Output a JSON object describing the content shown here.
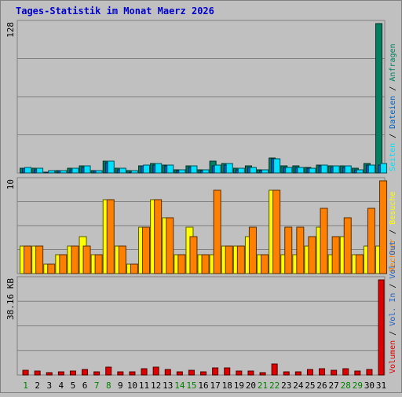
{
  "title": "Tages-Statistik im Monat Maerz 2026",
  "colors": {
    "title": "#0000cc",
    "anfragen": "#008060",
    "dateien": "#0060c0",
    "seiten": "#00e0ff",
    "besuche": "#ffff00",
    "rechner": "#ff8000",
    "vol_out": "#2060c0",
    "vol_in": "#2060c0",
    "volumen": "#e00000",
    "weekday_label": "#000000",
    "weekend_label": "#008000"
  },
  "chart_data": [
    {
      "type": "bar",
      "title": "Tages-Statistik im Monat Maerz 2026",
      "ymax_label": "128",
      "ylim": [
        0,
        128
      ],
      "categories": [
        "1",
        "2",
        "3",
        "4",
        "5",
        "6",
        "7",
        "8",
        "9",
        "10",
        "11",
        "12",
        "13",
        "14",
        "15",
        "16",
        "17",
        "18",
        "19",
        "20",
        "21",
        "22",
        "23",
        "24",
        "25",
        "26",
        "27",
        "28",
        "29",
        "30",
        "31"
      ],
      "legend": [
        "Anfragen",
        "Dateien",
        "Seiten"
      ],
      "series": [
        {
          "name": "Anfragen",
          "values": [
            4,
            4,
            1,
            2,
            4,
            6,
            2,
            10,
            4,
            2,
            6,
            8,
            7,
            3,
            6,
            3,
            10,
            8,
            4,
            6,
            3,
            13,
            6,
            6,
            5,
            7,
            6,
            6,
            4,
            8,
            128
          ]
        },
        {
          "name": "Dateien",
          "values": [
            4,
            3,
            1,
            2,
            3,
            5,
            2,
            9,
            3,
            1,
            6,
            7,
            6,
            2,
            5,
            2,
            6,
            7,
            3,
            5,
            2,
            12,
            5,
            5,
            4,
            6,
            5,
            5,
            3,
            7,
            7
          ]
        },
        {
          "name": "Seiten",
          "values": [
            5,
            4,
            2,
            2,
            4,
            6,
            2,
            10,
            4,
            2,
            7,
            8,
            7,
            3,
            6,
            3,
            7,
            8,
            4,
            5,
            3,
            12,
            5,
            5,
            4,
            7,
            6,
            6,
            3,
            7,
            8
          ]
        }
      ]
    },
    {
      "type": "bar",
      "ymax_label": "10",
      "ylim": [
        0,
        10
      ],
      "categories": [
        "1",
        "2",
        "3",
        "4",
        "5",
        "6",
        "7",
        "8",
        "9",
        "10",
        "11",
        "12",
        "13",
        "14",
        "15",
        "16",
        "17",
        "18",
        "19",
        "20",
        "21",
        "22",
        "23",
        "24",
        "25",
        "26",
        "27",
        "28",
        "29",
        "30",
        "31"
      ],
      "legend": [
        "Besuche",
        "Rechner"
      ],
      "series": [
        {
          "name": "Besuche",
          "values": [
            3,
            3,
            1,
            2,
            3,
            4,
            2,
            8,
            3,
            1,
            5,
            8,
            6,
            2,
            5,
            2,
            2,
            3,
            3,
            4,
            2,
            9,
            2,
            2,
            3,
            5,
            2,
            4,
            2,
            3,
            3
          ]
        },
        {
          "name": "Rechner",
          "values": [
            3,
            3,
            1,
            2,
            3,
            3,
            2,
            8,
            3,
            1,
            5,
            8,
            6,
            2,
            4,
            2,
            9,
            3,
            3,
            5,
            2,
            9,
            5,
            5,
            4,
            7,
            4,
            6,
            2,
            7,
            10
          ]
        }
      ]
    },
    {
      "type": "bar",
      "ymax_label": "38.16 KB",
      "ylim": [
        0,
        38.16
      ],
      "categories": [
        "1",
        "2",
        "3",
        "4",
        "5",
        "6",
        "7",
        "8",
        "9",
        "10",
        "11",
        "12",
        "13",
        "14",
        "15",
        "16",
        "17",
        "18",
        "19",
        "20",
        "21",
        "22",
        "23",
        "24",
        "25",
        "26",
        "27",
        "28",
        "29",
        "30",
        "31"
      ],
      "legend": [
        "Vol. Out",
        "Vol. In",
        "Volumen"
      ],
      "series": [
        {
          "name": "Volumen",
          "values": [
            1.8,
            1.6,
            1.0,
            1.3,
            1.6,
            2.1,
            1.2,
            3.3,
            1.4,
            1.2,
            2.6,
            3.0,
            2.1,
            1.2,
            2.0,
            1.2,
            2.8,
            2.9,
            1.6,
            1.7,
            1.1,
            4.4,
            1.3,
            1.4,
            2.1,
            2.4,
            2.0,
            2.4,
            1.5,
            2.3,
            38.16
          ]
        }
      ]
    }
  ]
}
